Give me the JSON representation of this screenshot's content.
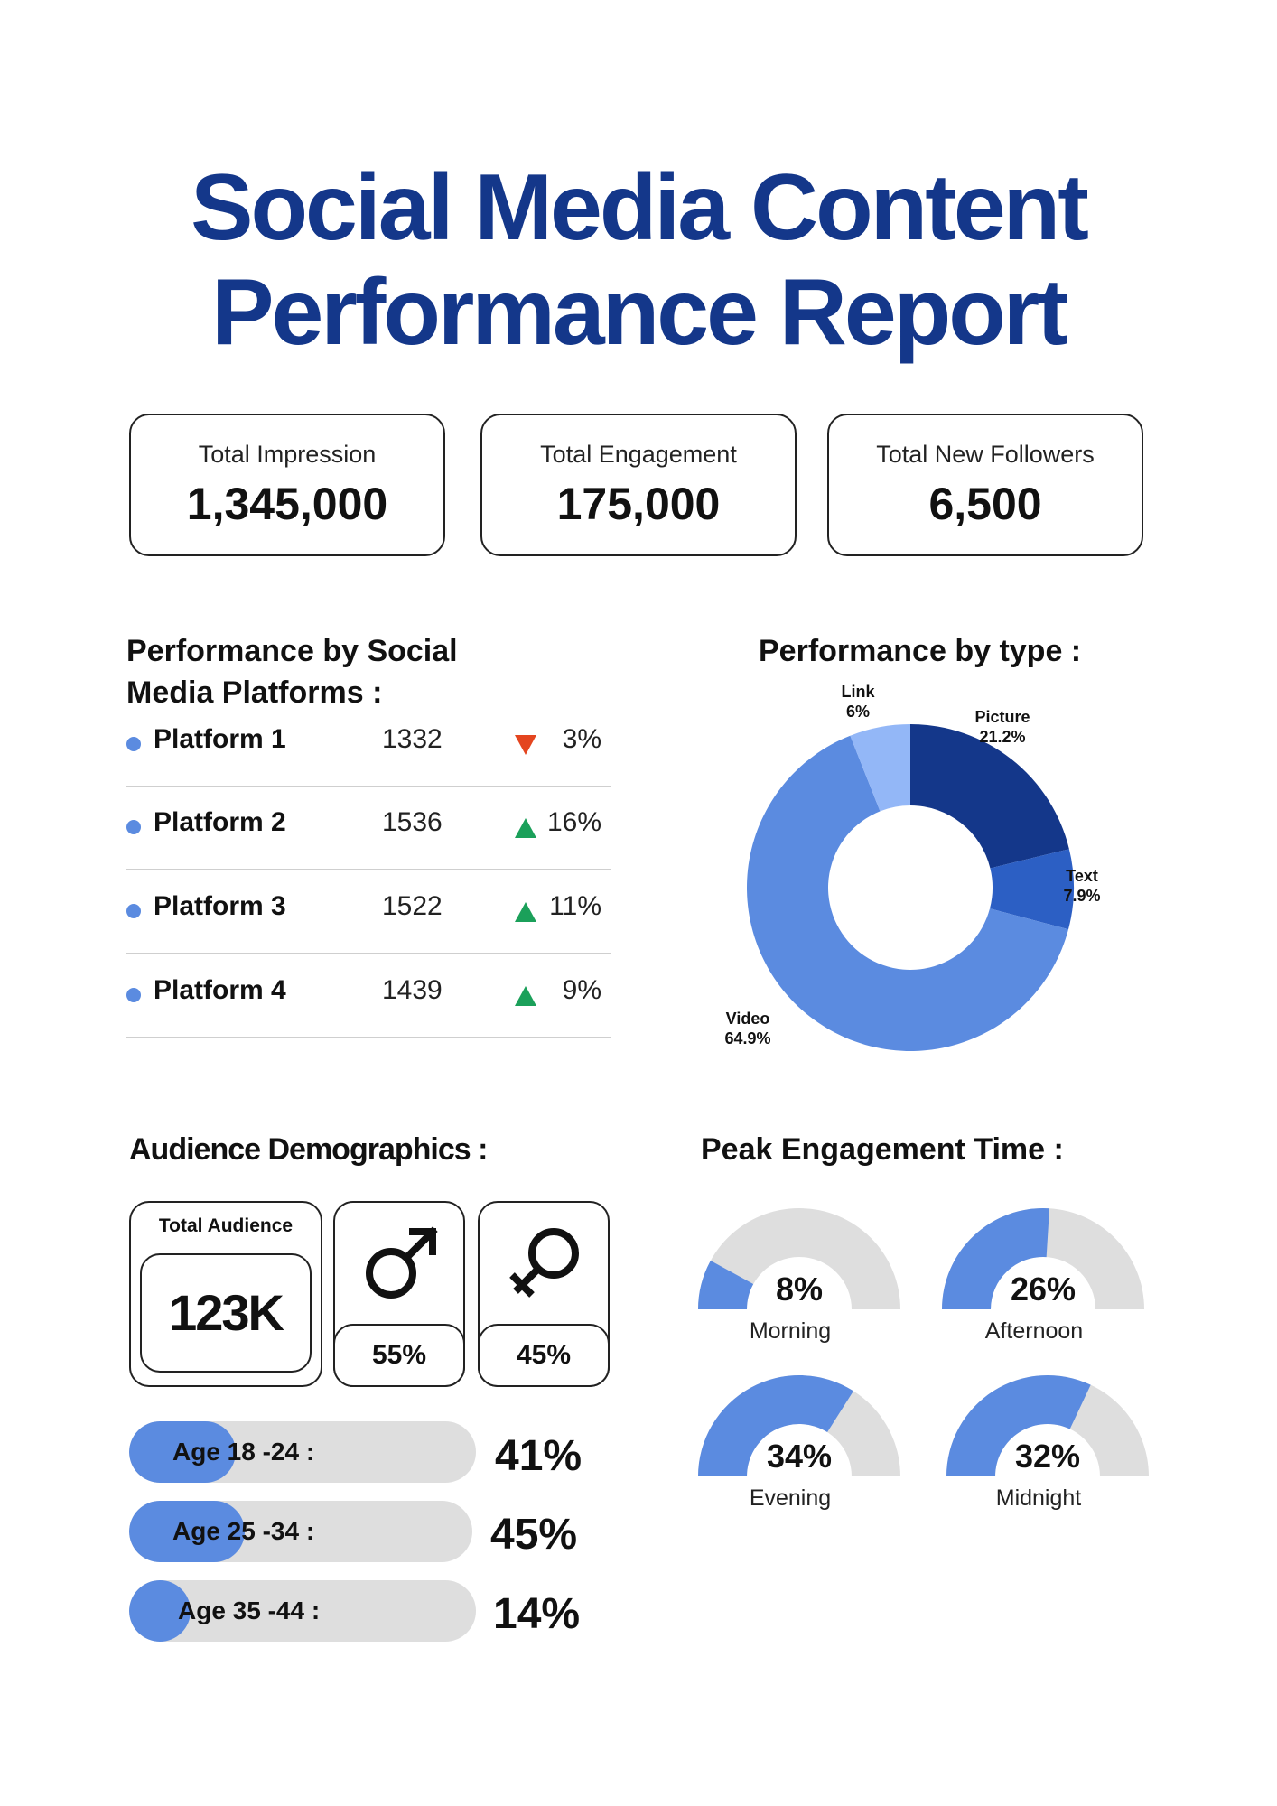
{
  "title": {
    "line1": "Social Media Content",
    "line2": "Performance Report"
  },
  "kpis": [
    {
      "label": "Total Impression",
      "value": "1,345,000"
    },
    {
      "label": "Total Engagement",
      "value": "175,000"
    },
    {
      "label": "Total New Followers",
      "value": "6,500"
    }
  ],
  "platforms": {
    "heading_line1": "Performance by Social",
    "heading_line2": "Media Platforms :",
    "rows": [
      {
        "name": "Platform 1",
        "value": "1332",
        "trend": "down",
        "change": "3%"
      },
      {
        "name": "Platform 2",
        "value": "1536",
        "trend": "up",
        "change": "16%"
      },
      {
        "name": "Platform 3",
        "value": "1522",
        "trend": "up",
        "change": "11%"
      },
      {
        "name": "Platform 4",
        "value": "1439",
        "trend": "up",
        "change": "9%"
      }
    ]
  },
  "demographics": {
    "heading": "Audience Demographics :",
    "total_label": "Total Audience",
    "total_value": "123K",
    "male_pct": "55%",
    "female_pct": "45%",
    "icons": {
      "male": "male-symbol-icon",
      "female": "female-symbol-icon"
    }
  },
  "peak": {
    "heading": "Peak Engagement Time :"
  },
  "colors": {
    "title": "#14378a",
    "accent": "#5b8be0",
    "track": "#dedede",
    "up": "#1ba05a",
    "down": "#e4451f"
  },
  "chart_data": [
    {
      "type": "pie",
      "title": "Performance by type :",
      "style": "donut",
      "labels": [
        "Picture",
        "Text",
        "Video",
        "Link"
      ],
      "values": [
        21.2,
        7.9,
        64.9,
        6.0
      ],
      "value_labels": [
        "21.2%",
        "7.9%",
        "64.9%",
        "6%"
      ],
      "colors": [
        "#14378a",
        "#2c5fc4",
        "#5b8be0",
        "#93b7f7"
      ]
    },
    {
      "type": "bar",
      "orientation": "horizontal",
      "categories": [
        "Age 18 -24 :",
        "Age 25 -34 :",
        "Age 35 -44 :"
      ],
      "values": [
        41,
        45,
        14
      ],
      "value_labels": [
        "41%",
        "45%",
        "14%"
      ]
    },
    {
      "type": "pie",
      "style": "gauge",
      "categories": [
        "Morning",
        "Afternoon",
        "Evening",
        "Midnight"
      ],
      "values": [
        8,
        26,
        34,
        32
      ],
      "value_labels": [
        "8%",
        "26%",
        "34%",
        "32%"
      ]
    }
  ]
}
